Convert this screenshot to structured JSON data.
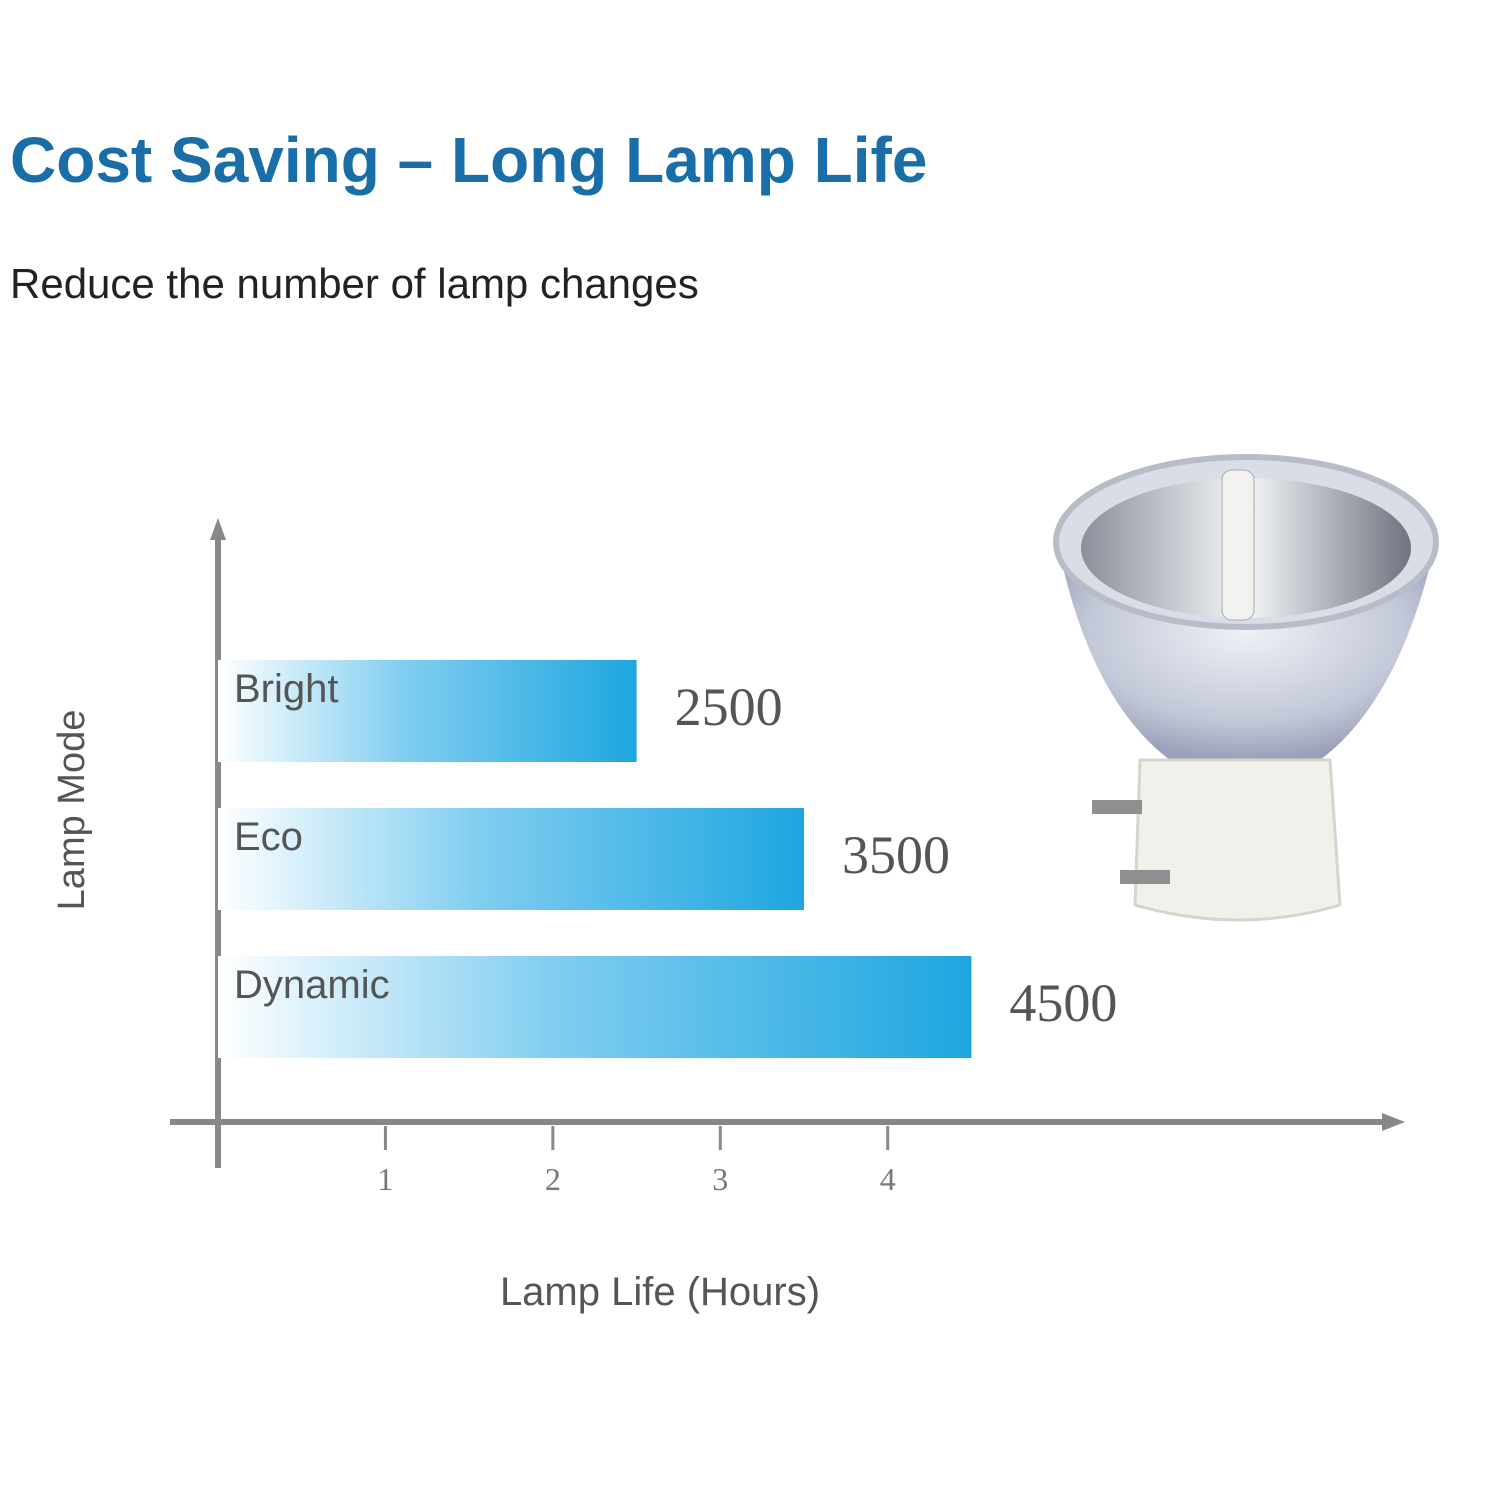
{
  "chart_data": {
    "type": "hbar",
    "title": "Cost Saving – Long Lamp Life",
    "subtitle": "Reduce the number of lamp changes",
    "x_label": "Lamp Life (Hours)",
    "y_label": "Lamp Mode",
    "categories": [
      "Bright",
      "Eco",
      "Dynamic"
    ],
    "values": [
      2500,
      3500,
      4500
    ],
    "color": "#1ea6e0",
    "xlim": [
      0,
      7000
    ],
    "xticks": [
      {
        "value": 1000,
        "label": "1"
      },
      {
        "value": 2000,
        "label": "2"
      },
      {
        "value": 3000,
        "label": "3"
      },
      {
        "value": 4000,
        "label": "4"
      }
    ]
  }
}
